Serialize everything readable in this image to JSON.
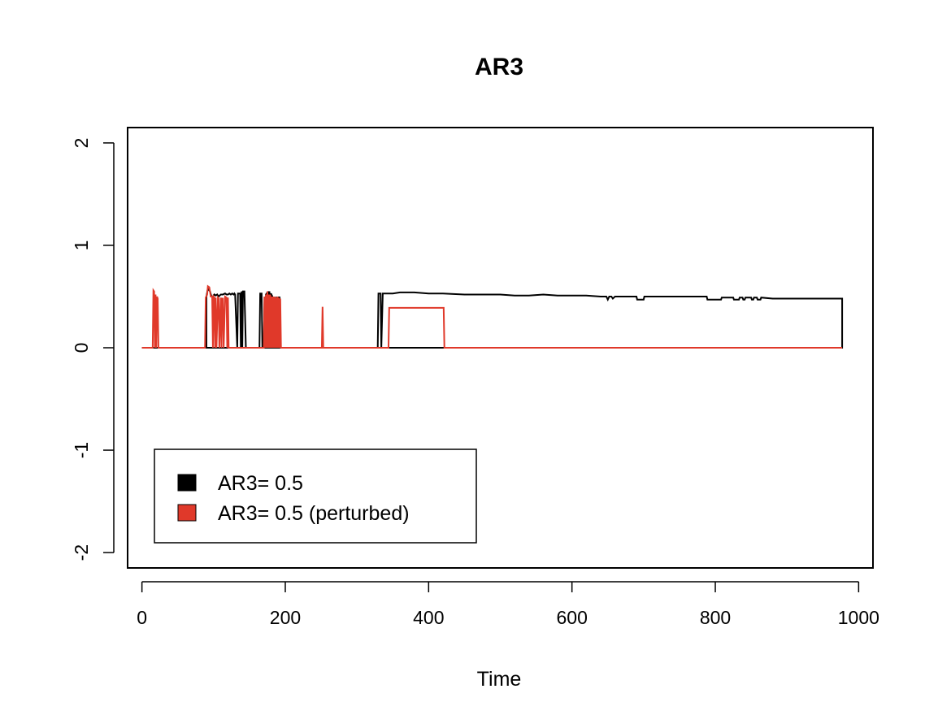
{
  "chart_data": {
    "type": "line",
    "title": "AR3",
    "xlabel": "Time",
    "ylabel": "",
    "xlim": [
      -20,
      1020
    ],
    "ylim": [
      -2.15,
      2.15
    ],
    "x_ticks": [
      0,
      200,
      400,
      600,
      800,
      1000
    ],
    "y_ticks": [
      -2,
      -1,
      0,
      1,
      2
    ],
    "grid": false,
    "legend_position": "bottom-left",
    "series": [
      {
        "name": "AR3= 0.5",
        "color": "#000000",
        "points": [
          [
            0,
            0
          ],
          [
            90,
            0
          ],
          [
            90,
            0.5
          ],
          [
            92,
            0.58
          ],
          [
            95,
            0.55
          ],
          [
            97,
            0.5
          ],
          [
            99,
            0.5
          ],
          [
            101,
            0.52
          ],
          [
            103,
            0.51
          ],
          [
            105,
            0.52
          ],
          [
            107,
            0.5
          ],
          [
            110,
            0.52
          ],
          [
            113,
            0.52
          ],
          [
            116,
            0.53
          ],
          [
            118,
            0.52
          ],
          [
            120,
            0.52
          ],
          [
            122,
            0.53
          ],
          [
            124,
            0.52
          ],
          [
            126,
            0.53
          ],
          [
            128,
            0.52
          ],
          [
            129,
            0.53
          ],
          [
            130,
            0.52
          ],
          [
            133,
            0.0
          ],
          [
            134,
            0.53
          ],
          [
            137,
            0.53
          ],
          [
            138,
            0.0
          ],
          [
            139,
            0.55
          ],
          [
            140,
            0.0
          ],
          [
            141,
            0.55
          ],
          [
            143,
            0.55
          ],
          [
            145,
            0.0
          ],
          [
            164,
            0.0
          ],
          [
            165,
            0.53
          ],
          [
            167,
            0.53
          ],
          [
            168,
            0.0
          ],
          [
            170,
            0.0
          ],
          [
            171,
            0.5
          ],
          [
            172,
            0.0
          ],
          [
            173,
            0.52
          ],
          [
            174,
            0.53
          ],
          [
            175,
            0.0
          ],
          [
            176,
            0.55
          ],
          [
            177,
            0.53
          ],
          [
            178,
            0.55
          ],
          [
            179,
            0.0
          ],
          [
            180,
            0.53
          ],
          [
            182,
            0.5
          ],
          [
            184,
            0.0
          ],
          [
            185,
            0.5
          ],
          [
            187,
            0.0
          ],
          [
            188,
            0.5
          ],
          [
            189,
            0.0
          ],
          [
            190,
            0.5
          ],
          [
            191,
            0.0
          ],
          [
            192,
            0.5
          ],
          [
            193,
            0.0
          ],
          [
            329,
            0.0
          ],
          [
            330,
            0.53
          ],
          [
            333,
            0.53
          ],
          [
            334,
            0.0
          ],
          [
            336,
            0.53
          ],
          [
            340,
            0.53
          ],
          [
            344,
            0.53
          ],
          [
            350,
            0.53
          ],
          [
            360,
            0.54
          ],
          [
            380,
            0.54
          ],
          [
            400,
            0.53
          ],
          [
            420,
            0.53
          ],
          [
            450,
            0.52
          ],
          [
            480,
            0.52
          ],
          [
            500,
            0.52
          ],
          [
            520,
            0.51
          ],
          [
            540,
            0.51
          ],
          [
            560,
            0.52
          ],
          [
            580,
            0.51
          ],
          [
            600,
            0.51
          ],
          [
            620,
            0.51
          ],
          [
            640,
            0.5
          ],
          [
            648,
            0.5
          ],
          [
            650,
            0.47
          ],
          [
            652,
            0.5
          ],
          [
            655,
            0.5
          ],
          [
            657,
            0.48
          ],
          [
            660,
            0.5
          ],
          [
            680,
            0.5
          ],
          [
            690,
            0.5
          ],
          [
            691,
            0.47
          ],
          [
            700,
            0.47
          ],
          [
            701,
            0.5
          ],
          [
            720,
            0.5
          ],
          [
            740,
            0.5
          ],
          [
            760,
            0.5
          ],
          [
            780,
            0.5
          ],
          [
            788,
            0.5
          ],
          [
            789,
            0.47
          ],
          [
            808,
            0.47
          ],
          [
            809,
            0.49
          ],
          [
            825,
            0.49
          ],
          [
            826,
            0.47
          ],
          [
            833,
            0.47
          ],
          [
            834,
            0.49
          ],
          [
            838,
            0.49
          ],
          [
            839,
            0.47
          ],
          [
            841,
            0.47
          ],
          [
            842,
            0.49
          ],
          [
            850,
            0.49
          ],
          [
            851,
            0.47
          ],
          [
            853,
            0.47
          ],
          [
            854,
            0.49
          ],
          [
            858,
            0.49
          ],
          [
            859,
            0.47
          ],
          [
            863,
            0.47
          ],
          [
            864,
            0.49
          ],
          [
            880,
            0.48
          ],
          [
            900,
            0.48
          ],
          [
            920,
            0.48
          ],
          [
            940,
            0.48
          ],
          [
            960,
            0.48
          ],
          [
            975,
            0.48
          ],
          [
            977,
            0.48
          ],
          [
            977,
            0.0
          ],
          [
            0,
            0.0
          ]
        ]
      },
      {
        "name": "AR3= 0.5 (perturbed)",
        "color": "#e0392a",
        "points": [
          [
            0,
            0
          ],
          [
            15,
            0
          ],
          [
            16,
            0.56
          ],
          [
            17,
            0.55
          ],
          [
            18,
            0.0
          ],
          [
            19,
            0.52
          ],
          [
            20,
            0.0
          ],
          [
            21,
            0.5
          ],
          [
            22,
            0.48
          ],
          [
            23,
            0.0
          ],
          [
            88,
            0.0
          ],
          [
            89,
            0.49
          ],
          [
            91,
            0.52
          ],
          [
            92,
            0.6
          ],
          [
            94,
            0.59
          ],
          [
            96,
            0.5
          ],
          [
            98,
            0.5
          ],
          [
            99,
            0.0
          ],
          [
            100,
            0.5
          ],
          [
            101,
            0.49
          ],
          [
            102,
            0.0
          ],
          [
            103,
            0.49
          ],
          [
            104,
            0.0
          ],
          [
            106,
            0.49
          ],
          [
            107,
            0.48
          ],
          [
            108,
            0.0
          ],
          [
            110,
            0.49
          ],
          [
            111,
            0.0
          ],
          [
            112,
            0.48
          ],
          [
            113,
            0.48
          ],
          [
            114,
            0.0
          ],
          [
            116,
            0.5
          ],
          [
            118,
            0.49
          ],
          [
            119,
            0.0
          ],
          [
            120,
            0.49
          ],
          [
            121,
            0.0
          ],
          [
            122,
            0.0
          ],
          [
            170,
            0.0
          ],
          [
            171,
            0.5
          ],
          [
            172,
            0.0
          ],
          [
            173,
            0.52
          ],
          [
            174,
            0.0
          ],
          [
            175,
            0.55
          ],
          [
            176,
            0.0
          ],
          [
            177,
            0.52
          ],
          [
            178,
            0.0
          ],
          [
            179,
            0.52
          ],
          [
            180,
            0.0
          ],
          [
            181,
            0.5
          ],
          [
            182,
            0.0
          ],
          [
            183,
            0.5
          ],
          [
            184,
            0.0
          ],
          [
            185,
            0.5
          ],
          [
            186,
            0.0
          ],
          [
            187,
            0.49
          ],
          [
            188,
            0.0
          ],
          [
            189,
            0.5
          ],
          [
            190,
            0.0
          ],
          [
            191,
            0.49
          ],
          [
            192,
            0.0
          ],
          [
            193,
            0.48
          ],
          [
            194,
            0.0
          ],
          [
            251,
            0.0
          ],
          [
            252,
            0.4
          ],
          [
            253,
            0.0
          ],
          [
            344,
            0.0
          ],
          [
            345,
            0.39
          ],
          [
            350,
            0.39
          ],
          [
            360,
            0.39
          ],
          [
            380,
            0.39
          ],
          [
            400,
            0.39
          ],
          [
            420,
            0.39
          ],
          [
            421,
            0.39
          ],
          [
            422,
            0.0
          ],
          [
            500,
            0.0
          ],
          [
            700,
            0.0
          ],
          [
            977,
            0.0
          ]
        ]
      }
    ]
  }
}
